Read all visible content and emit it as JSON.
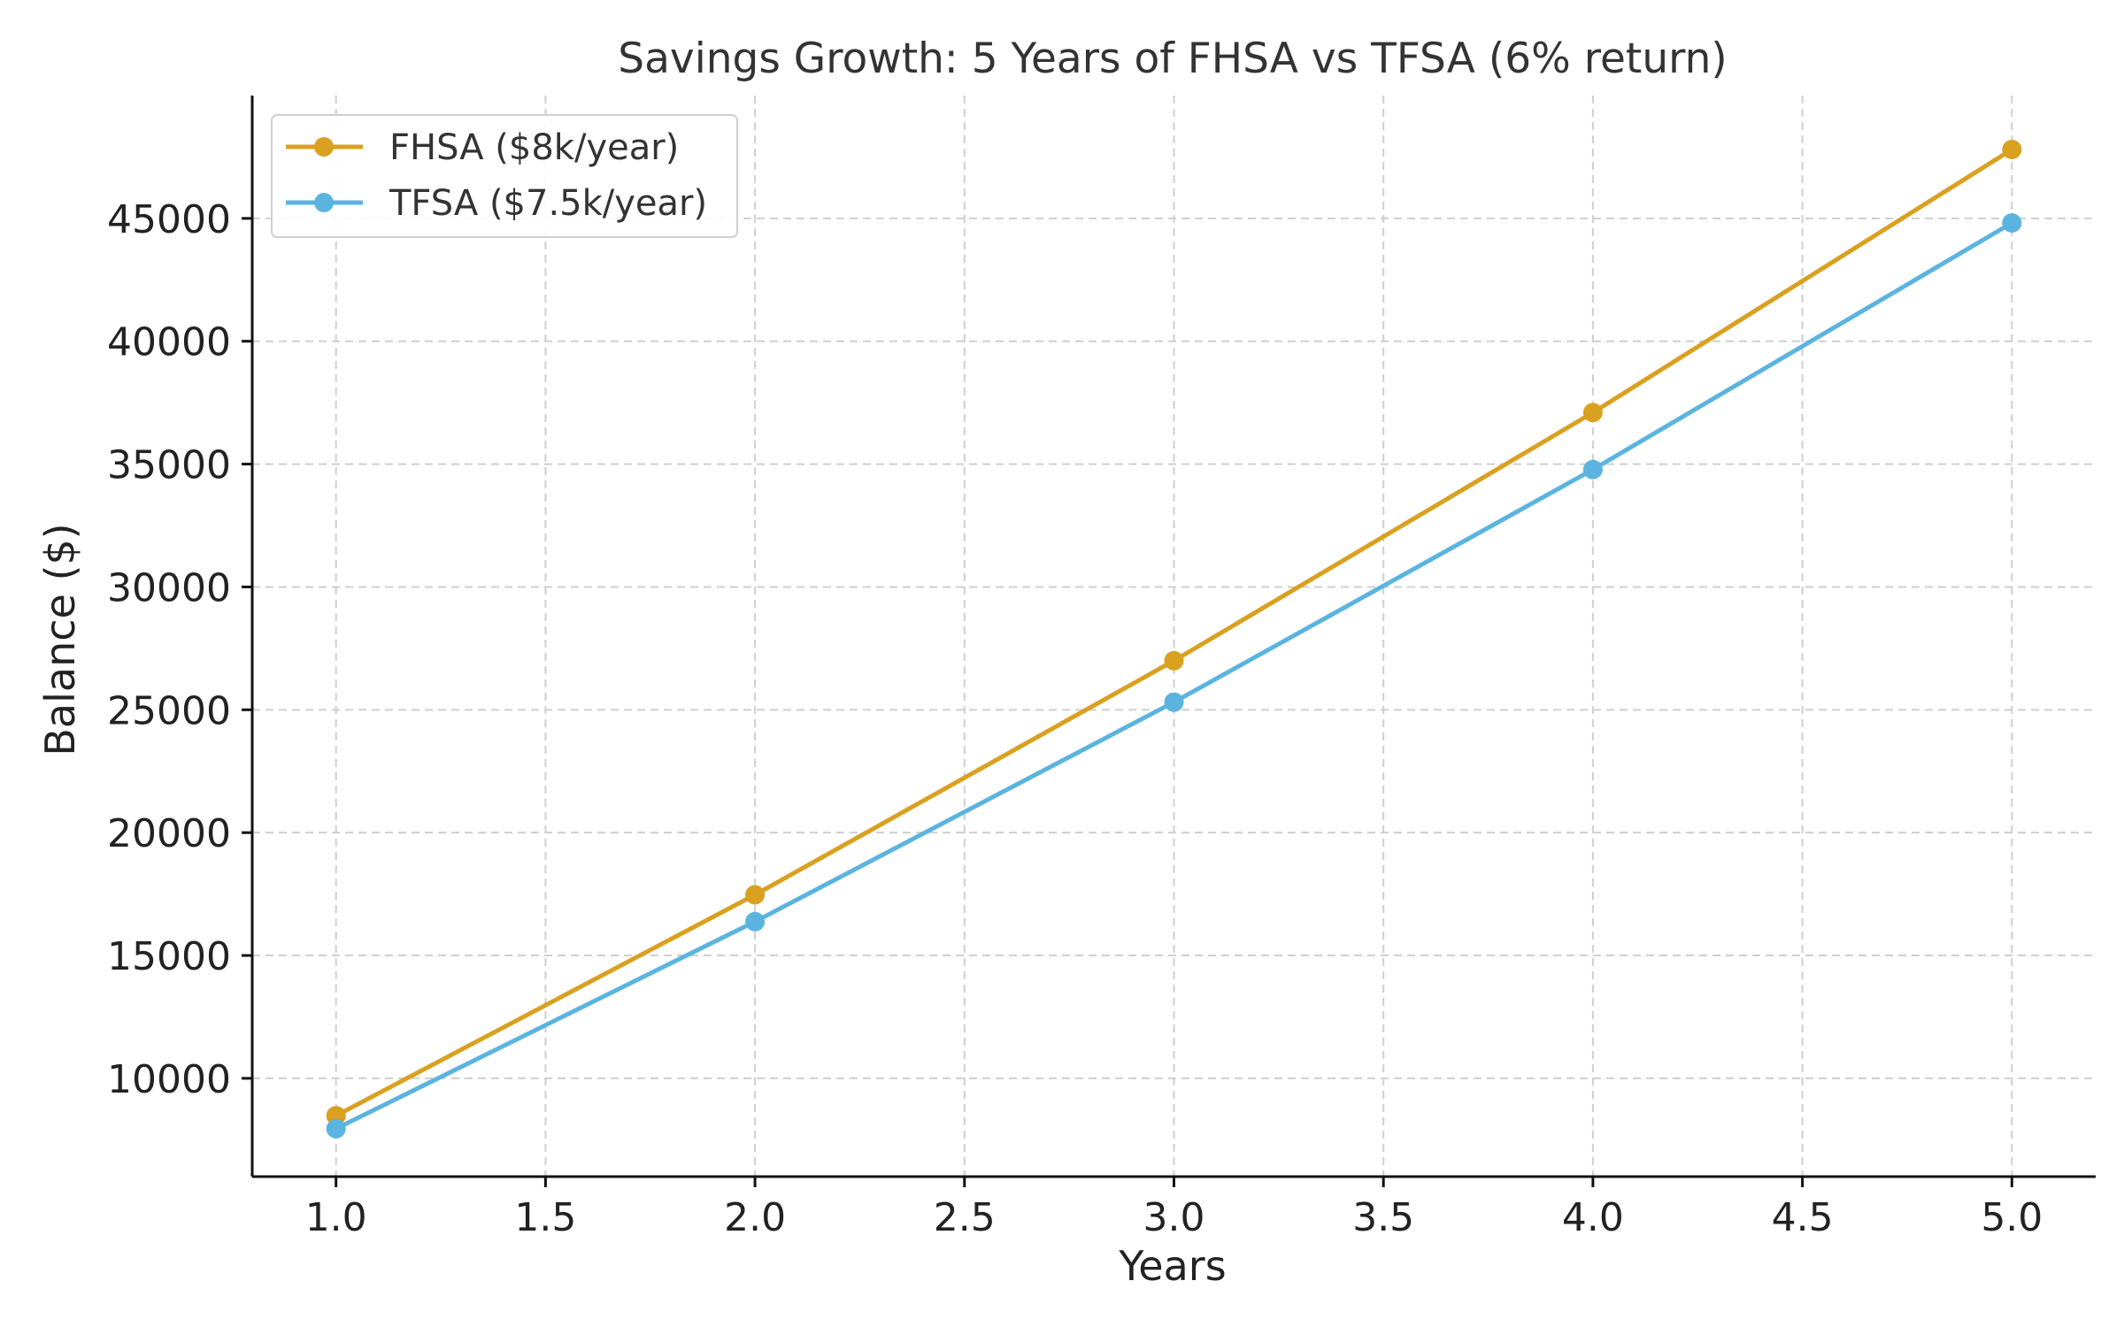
{
  "chart_data": {
    "type": "line",
    "title": "Savings Growth: 5 Years of FHSA vs TFSA (6% return)",
    "xlabel": "Years",
    "ylabel": "Balance ($)",
    "x": [
      1.0,
      2.0,
      3.0,
      4.0,
      5.0
    ],
    "xlim": [
      0.8,
      5.2
    ],
    "ylim": [
      6000,
      50000
    ],
    "x_ticks": [
      1.0,
      1.5,
      2.0,
      2.5,
      3.0,
      3.5,
      4.0,
      4.5,
      5.0
    ],
    "x_tick_labels": [
      "1.0",
      "1.5",
      "2.0",
      "2.5",
      "3.0",
      "3.5",
      "4.0",
      "4.5",
      "5.0"
    ],
    "y_ticks": [
      10000,
      15000,
      20000,
      25000,
      30000,
      35000,
      40000,
      45000
    ],
    "y_tick_labels": [
      "10000",
      "15000",
      "20000",
      "25000",
      "30000",
      "35000",
      "40000",
      "45000"
    ],
    "grid": true,
    "legend_position": "top-left",
    "series": [
      {
        "name": "FHSA ($8k/year)",
        "color": "#DAA01F",
        "values": [
          8480,
          17469,
          26997,
          37097,
          47803
        ]
      },
      {
        "name": "TFSA ($7.5k/year)",
        "color": "#5BB4DF",
        "values": [
          7950,
          16377,
          25310,
          34778,
          44815
        ]
      }
    ]
  }
}
